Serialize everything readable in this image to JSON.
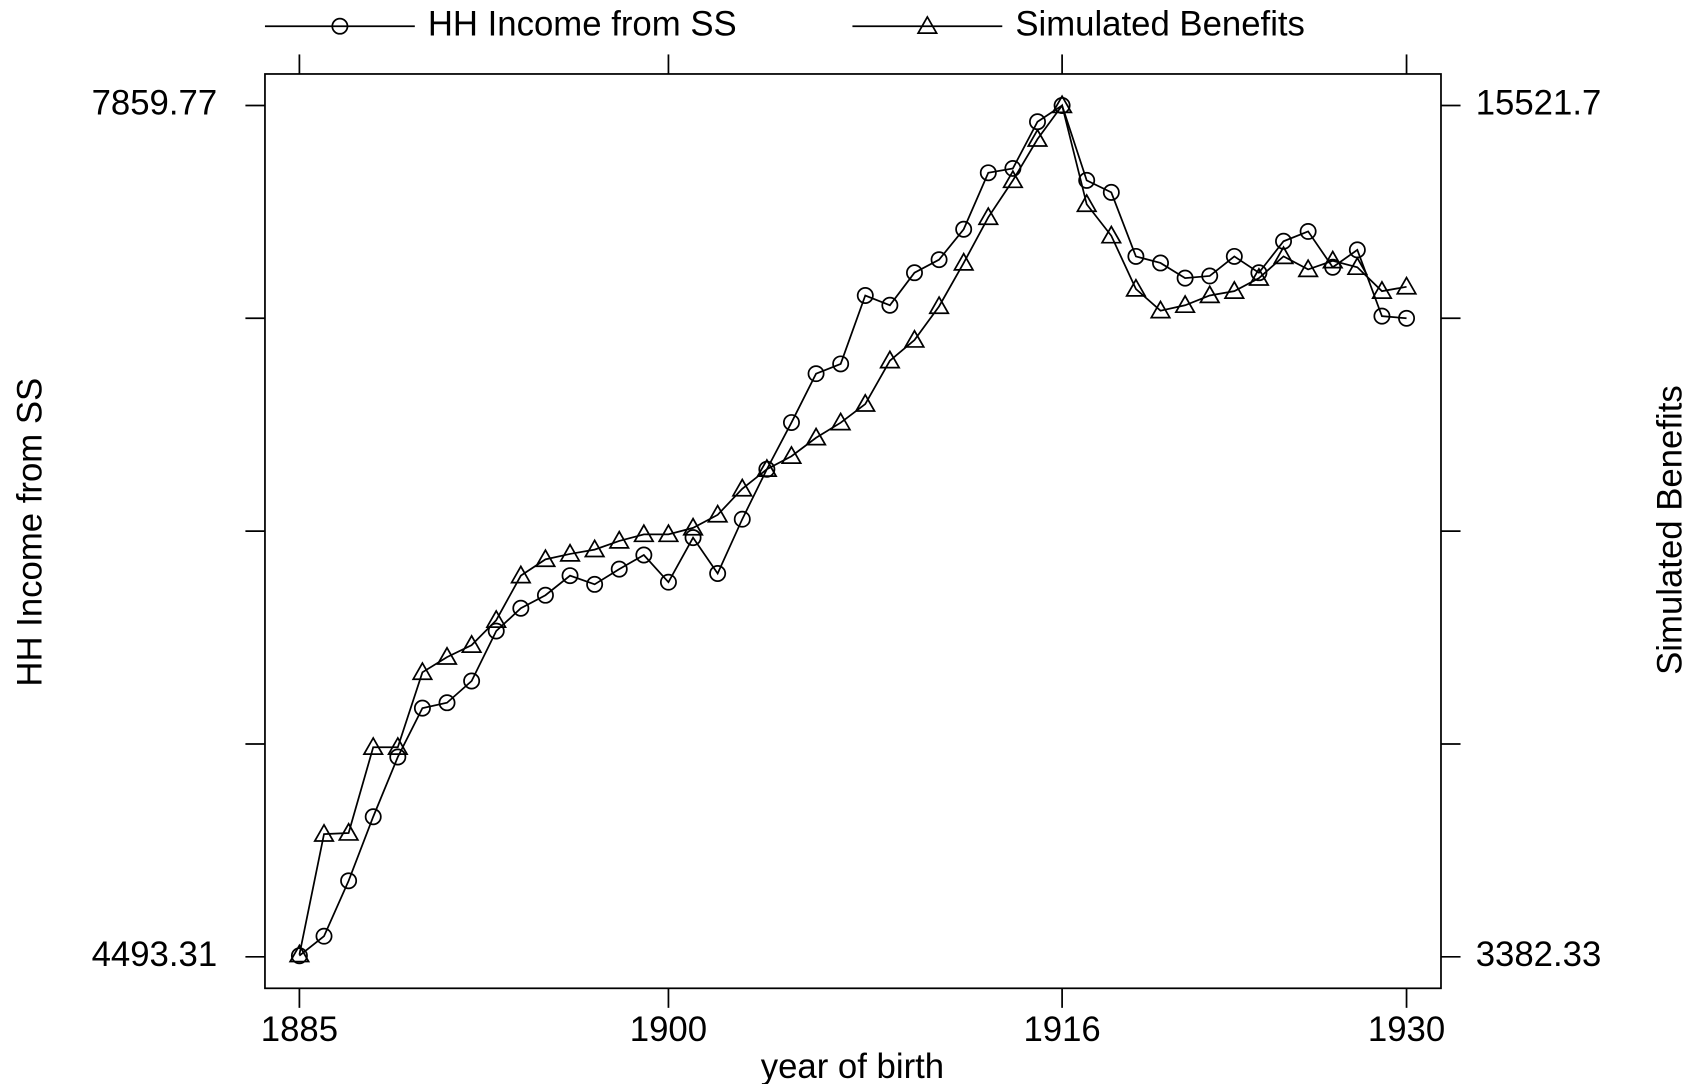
{
  "chart_data": {
    "type": "line",
    "x_label": "year of birth",
    "y_label": "HH Income from SS",
    "y2_label": "Simulated Benefits",
    "x": [
      1885,
      1886,
      1887,
      1888,
      1889,
      1890,
      1891,
      1892,
      1893,
      1894,
      1895,
      1896,
      1897,
      1898,
      1899,
      1900,
      1901,
      1902,
      1903,
      1904,
      1905,
      1906,
      1907,
      1908,
      1909,
      1910,
      1911,
      1912,
      1913,
      1914,
      1915,
      1916,
      1917,
      1918,
      1919,
      1920,
      1921,
      1922,
      1923,
      1924,
      1925,
      1926,
      1927,
      1928,
      1929,
      1930
    ],
    "series": [
      {
        "name": "HH Income from SS",
        "color": "#000000",
        "marker": "circle",
        "axis": "y",
        "values": [
          4497.6,
          4574.9,
          4793.9,
          5047.2,
          5283.4,
          5476.6,
          5498.1,
          5584.0,
          5781.5,
          5871.7,
          5923.2,
          6000.5,
          5966.2,
          6026.3,
          6082.1,
          5974.7,
          6150.8,
          6009.1,
          6223.8,
          6421.3,
          6606.0,
          6799.2,
          6837.8,
          7108.3,
          7069.7,
          7198.5,
          7250.0,
          7370.3,
          7593.6,
          7610.8,
          7795.4,
          7859.77,
          7563.5,
          7516.1,
          7262.9,
          7237.0,
          7177.1,
          7185.7,
          7262.9,
          7198.5,
          7322.8,
          7361.7,
          7220.0,
          7288.7,
          7026.8,
          7018.2
        ]
      },
      {
        "name": "Simulated Benefits",
        "color": "#000000",
        "marker": "triangle",
        "axis": "y2",
        "values": [
          3413.3,
          5132.0,
          5147.5,
          6370.7,
          6370.7,
          7439.1,
          7656.0,
          7826.2,
          8182.4,
          8817.2,
          9049.5,
          9126.9,
          9188.8,
          9312.7,
          9405.6,
          9405.6,
          9498.5,
          9684.3,
          10055.9,
          10334.6,
          10520.4,
          10783.7,
          10998.5,
          11263.7,
          11882.9,
          12177.2,
          12657.2,
          13276.6,
          13926.9,
          14453.4,
          15041.8,
          15521.7,
          14112.7,
          13663.7,
          12905.0,
          12595.3,
          12672.7,
          12812.1,
          12874.0,
          13059.8,
          13369.5,
          13183.7,
          13307.6,
          13214.7,
          12874.0,
          12935.9
        ]
      }
    ],
    "xlim": [
      1883.6,
      1931.4
    ],
    "xticks": [
      1885,
      1900,
      1916,
      1930
    ],
    "ylim": [
      4368.8,
      7984.3
    ],
    "yticks": [
      4493.31,
      7859.77
    ],
    "yticks_minor": [
      5334.93,
      6176.54,
      7018.16
    ],
    "y2lim": [
      2933.3,
      15970.7
    ],
    "y2ticks": [
      3382.33,
      15521.7
    ],
    "y2ticks_minor": [
      6417.17,
      9452.02,
      12486.86
    ],
    "legend": "top"
  }
}
